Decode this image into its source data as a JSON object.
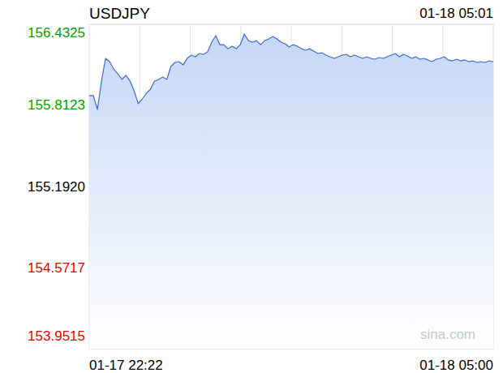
{
  "chart_data": {
    "type": "area",
    "title": "USDJPY",
    "subtitle": "01-18 05:01",
    "annotations": [
      "sina.com"
    ],
    "categories": [
      "01-17 22:22",
      null,
      null,
      null,
      null,
      null,
      null,
      null,
      null,
      null,
      null,
      null,
      null,
      null,
      null,
      null,
      null,
      null,
      null,
      null,
      null,
      null,
      null,
      null,
      null,
      null,
      null,
      null,
      null,
      null,
      null,
      null,
      null,
      null,
      null,
      null,
      null,
      null,
      null,
      null,
      null,
      null,
      null,
      null,
      null,
      null,
      null,
      null,
      null,
      null,
      null,
      null,
      null,
      null,
      null,
      null,
      null,
      null,
      null,
      null,
      null,
      null,
      null,
      null,
      null,
      null,
      null,
      null,
      null,
      null,
      null,
      null,
      null,
      null,
      null,
      null,
      null,
      null,
      null,
      null,
      null,
      null,
      null,
      null,
      null,
      null,
      null,
      null,
      null,
      null,
      null,
      null,
      null,
      null,
      null,
      null,
      null,
      null,
      null,
      "01-18 05:00"
    ],
    "values": [
      155.887,
      155.887,
      155.781,
      155.998,
      156.172,
      156.147,
      156.091,
      156.054,
      156.011,
      156.042,
      155.998,
      155.924,
      155.825,
      155.862,
      155.905,
      155.936,
      155.998,
      156.011,
      156.029,
      156.011,
      156.11,
      156.141,
      156.147,
      156.122,
      156.172,
      156.197,
      156.184,
      156.209,
      156.203,
      156.222,
      156.296,
      156.346,
      156.277,
      156.277,
      156.246,
      156.265,
      156.246,
      156.277,
      156.358,
      156.308,
      156.296,
      156.308,
      156.277,
      156.308,
      156.321,
      156.339,
      156.321,
      156.296,
      156.284,
      156.259,
      156.277,
      156.265,
      156.246,
      156.234,
      156.246,
      156.228,
      156.209,
      156.215,
      156.197,
      156.184,
      156.172,
      156.184,
      156.197,
      156.203,
      156.184,
      156.197,
      156.184,
      156.172,
      156.184,
      156.172,
      156.166,
      156.178,
      156.172,
      156.184,
      156.197,
      156.209,
      156.184,
      156.203,
      156.191,
      156.172,
      156.184,
      156.166,
      156.172,
      156.16,
      156.147,
      156.166,
      156.172,
      156.184,
      156.16,
      156.153,
      156.166,
      156.153,
      156.16,
      156.147,
      156.153,
      156.141,
      156.147,
      156.141,
      156.153,
      156.147
    ],
    "color": "#3d6cc8",
    "ylim": [
      153.9515,
      156.4325
    ],
    "yticks": [
      153.9515,
      154.5717,
      {
        "value": 155.192,
        "label": "155.1920"
      },
      155.8123,
      156.4325
    ],
    "grid": true
  }
}
